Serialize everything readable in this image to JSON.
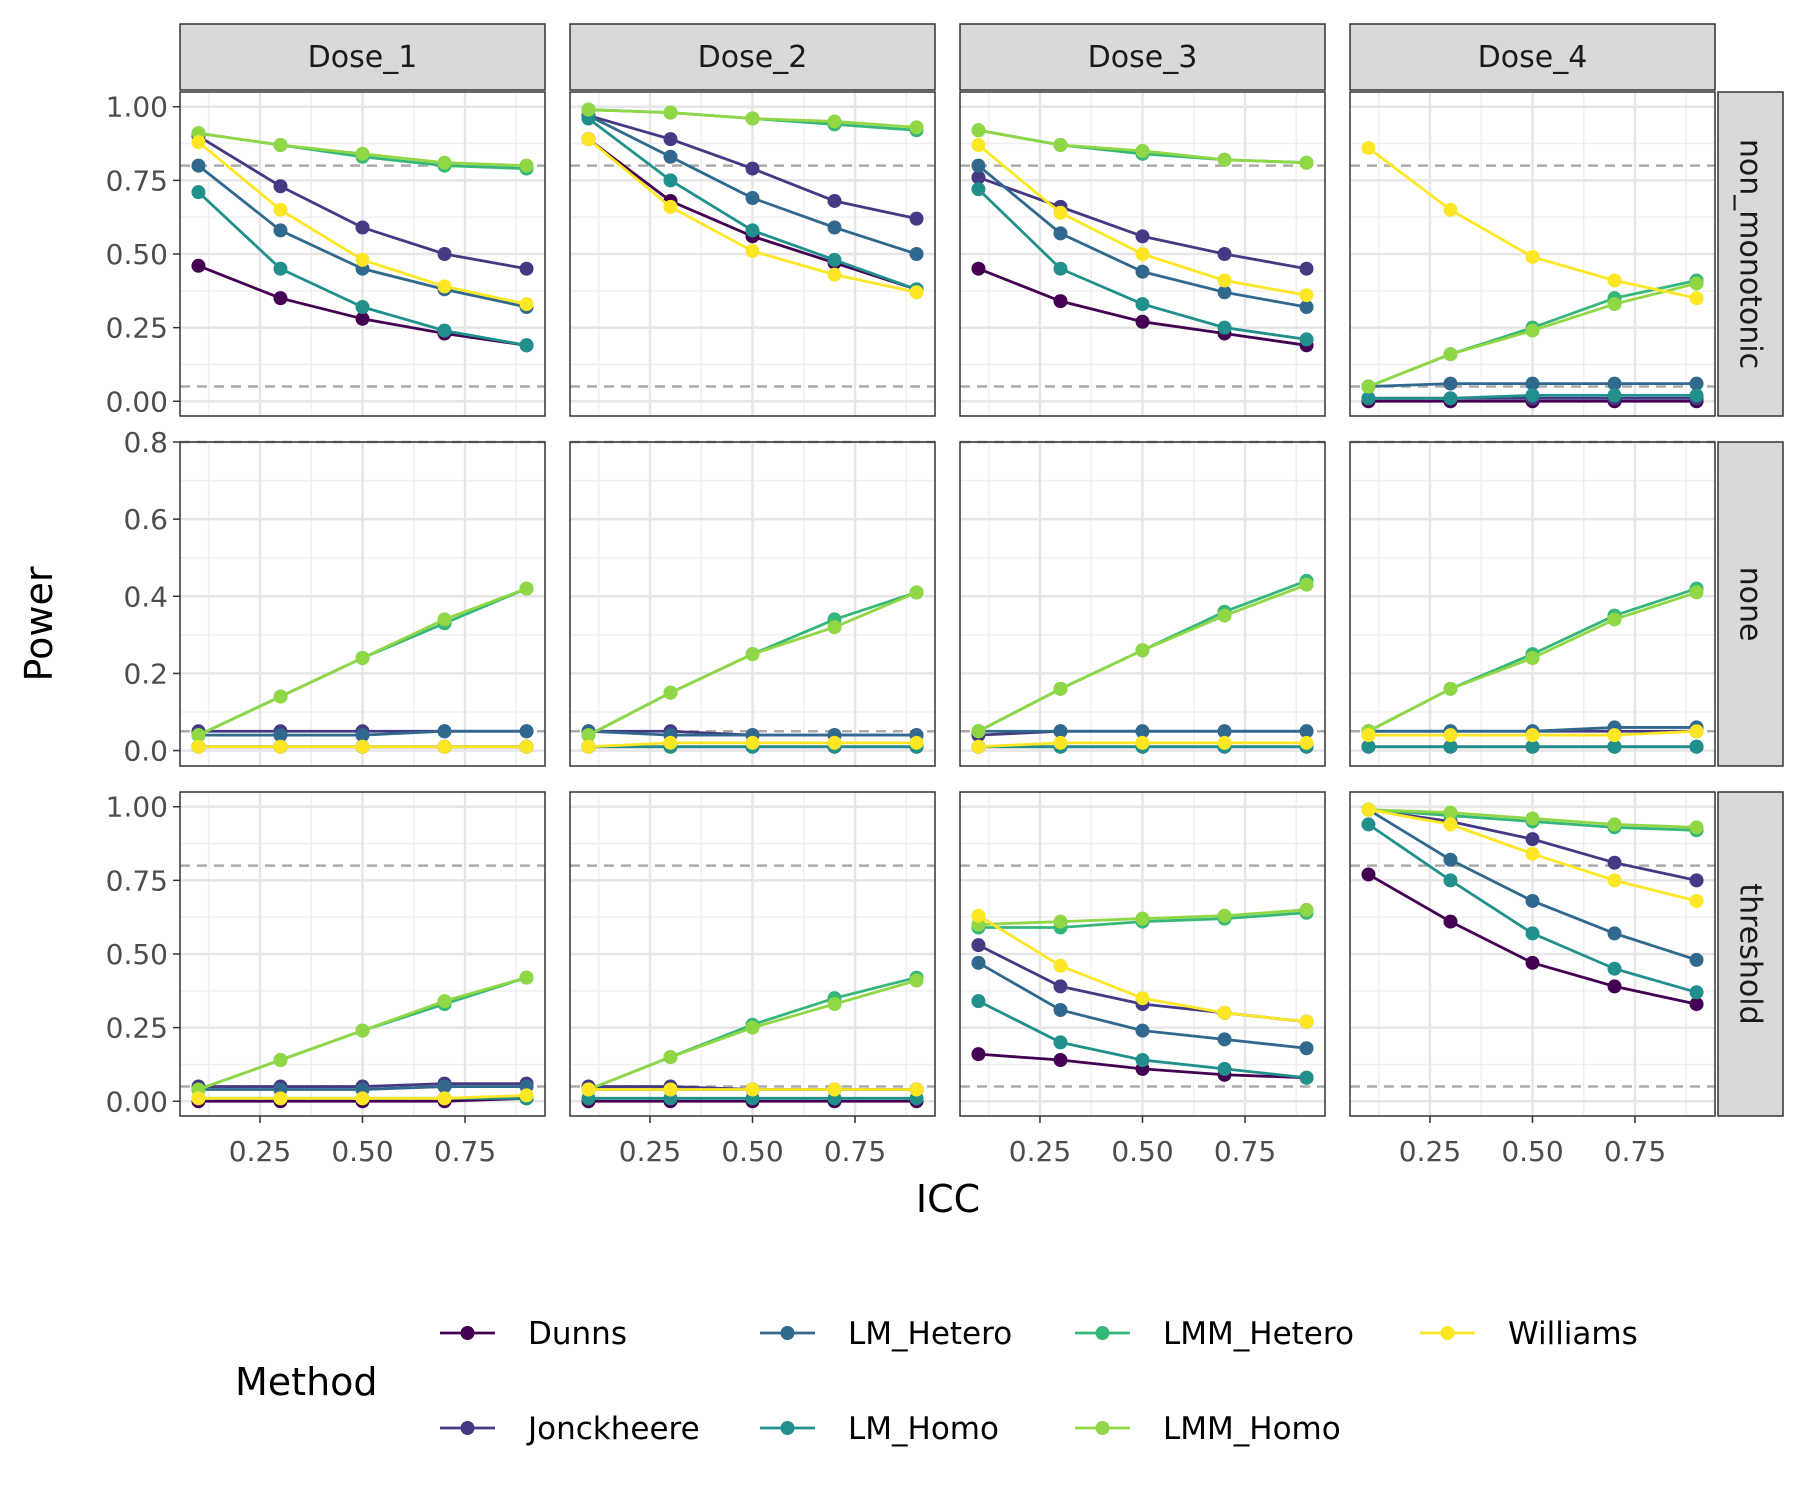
{
  "chart_data": {
    "type": "line",
    "xlabel": "ICC",
    "ylabel": "Power",
    "x": [
      0.1,
      0.3,
      0.5,
      0.7,
      0.9
    ],
    "x_ticks": [
      "0.25",
      "0.50",
      "0.75"
    ],
    "x_tick_values": [
      0.25,
      0.5,
      0.75
    ],
    "xlim": [
      0.055,
      0.945
    ],
    "columns": [
      "Dose_1",
      "Dose_2",
      "Dose_3",
      "Dose_4"
    ],
    "rows": [
      {
        "name": "non_monotonic",
        "ylim": [
          -0.05,
          1.05
        ],
        "y_ticks": [
          "0.00",
          "0.25",
          "0.50",
          "0.75",
          "1.00"
        ],
        "y_tick_values": [
          0,
          0.25,
          0.5,
          0.75,
          1.0
        ]
      },
      {
        "name": "none",
        "ylim": [
          -0.04,
          0.8
        ],
        "y_ticks": [
          "0.0",
          "0.2",
          "0.4",
          "0.6",
          "0.8"
        ],
        "y_tick_values": [
          0,
          0.2,
          0.4,
          0.6,
          0.8
        ]
      },
      {
        "name": "threshold",
        "ylim": [
          -0.05,
          1.05
        ],
        "y_ticks": [
          "0.00",
          "0.25",
          "0.50",
          "0.75",
          "1.00"
        ],
        "y_tick_values": [
          0,
          0.25,
          0.5,
          0.75,
          1.0
        ]
      }
    ],
    "reference_lines": [
      0.05,
      0.8
    ],
    "legend": {
      "title": "Method",
      "position": "bottom",
      "entries": [
        {
          "name": "Dunns",
          "color": "#440154"
        },
        {
          "name": "Jonckheere",
          "color": "#443A83"
        },
        {
          "name": "LM_Hetero",
          "color": "#31688E"
        },
        {
          "name": "LM_Homo",
          "color": "#21908C"
        },
        {
          "name": "LMM_Hetero",
          "color": "#35B779"
        },
        {
          "name": "LMM_Homo",
          "color": "#8FD744"
        },
        {
          "name": "Williams",
          "color": "#FDE725"
        }
      ]
    },
    "panels": [
      {
        "row": "non_monotonic",
        "col": "Dose_1",
        "series": {
          "Dunns": [
            0.46,
            0.35,
            0.28,
            0.23,
            0.19
          ],
          "Jonckheere": [
            0.9,
            0.73,
            0.59,
            0.5,
            0.45
          ],
          "LM_Hetero": [
            0.8,
            0.58,
            0.45,
            0.38,
            0.32
          ],
          "LM_Homo": [
            0.71,
            0.45,
            0.32,
            0.24,
            0.19
          ],
          "LMM_Hetero": [
            0.91,
            0.87,
            0.83,
            0.8,
            0.79
          ],
          "LMM_Homo": [
            0.91,
            0.87,
            0.84,
            0.81,
            0.8
          ],
          "Williams": [
            0.88,
            0.65,
            0.48,
            0.39,
            0.33
          ]
        }
      },
      {
        "row": "non_monotonic",
        "col": "Dose_2",
        "series": {
          "Dunns": [
            0.89,
            0.68,
            0.56,
            0.47,
            0.38
          ],
          "Jonckheere": [
            0.97,
            0.89,
            0.79,
            0.68,
            0.62
          ],
          "LM_Hetero": [
            0.97,
            0.83,
            0.69,
            0.59,
            0.5
          ],
          "LM_Homo": [
            0.96,
            0.75,
            0.58,
            0.48,
            0.38
          ],
          "LMM_Hetero": [
            0.99,
            0.98,
            0.96,
            0.94,
            0.92
          ],
          "LMM_Homo": [
            0.99,
            0.98,
            0.96,
            0.95,
            0.93
          ],
          "Williams": [
            0.89,
            0.66,
            0.51,
            0.43,
            0.37
          ]
        }
      },
      {
        "row": "non_monotonic",
        "col": "Dose_3",
        "series": {
          "Dunns": [
            0.45,
            0.34,
            0.27,
            0.23,
            0.19
          ],
          "Jonckheere": [
            0.76,
            0.66,
            0.56,
            0.5,
            0.45
          ],
          "LM_Hetero": [
            0.8,
            0.57,
            0.44,
            0.37,
            0.32
          ],
          "LM_Homo": [
            0.72,
            0.45,
            0.33,
            0.25,
            0.21
          ],
          "LMM_Hetero": [
            0.92,
            0.87,
            0.84,
            0.82,
            0.81
          ],
          "LMM_Homo": [
            0.92,
            0.87,
            0.85,
            0.82,
            0.81
          ],
          "Williams": [
            0.87,
            0.64,
            0.5,
            0.41,
            0.36
          ]
        }
      },
      {
        "row": "non_monotonic",
        "col": "Dose_4",
        "series": {
          "Dunns": [
            0.0,
            0.0,
            0.0,
            0.0,
            0.0
          ],
          "Jonckheere": [
            0.01,
            0.01,
            0.01,
            0.01,
            0.01
          ],
          "LM_Hetero": [
            0.05,
            0.06,
            0.06,
            0.06,
            0.06
          ],
          "LM_Homo": [
            0.01,
            0.01,
            0.02,
            0.02,
            0.02
          ],
          "LMM_Hetero": [
            0.05,
            0.16,
            0.25,
            0.35,
            0.41
          ],
          "LMM_Homo": [
            0.05,
            0.16,
            0.24,
            0.33,
            0.4
          ],
          "Williams": [
            0.86,
            0.65,
            0.49,
            0.41,
            0.35
          ]
        }
      },
      {
        "row": "none",
        "col": "Dose_1",
        "series": {
          "Dunns": [
            0.01,
            0.01,
            0.01,
            0.01,
            0.01
          ],
          "Jonckheere": [
            0.05,
            0.05,
            0.05,
            0.05,
            0.05
          ],
          "LM_Hetero": [
            0.04,
            0.04,
            0.04,
            0.05,
            0.05
          ],
          "LM_Homo": [
            0.01,
            0.01,
            0.01,
            0.01,
            0.01
          ],
          "LMM_Hetero": [
            0.04,
            0.14,
            0.24,
            0.33,
            0.42
          ],
          "LMM_Homo": [
            0.04,
            0.14,
            0.24,
            0.34,
            0.42
          ],
          "Williams": [
            0.01,
            0.01,
            0.01,
            0.01,
            0.01
          ]
        }
      },
      {
        "row": "none",
        "col": "Dose_2",
        "series": {
          "Dunns": [
            0.01,
            0.01,
            0.01,
            0.01,
            0.01
          ],
          "Jonckheere": [
            0.05,
            0.05,
            0.04,
            0.04,
            0.04
          ],
          "LM_Hetero": [
            0.05,
            0.04,
            0.04,
            0.04,
            0.04
          ],
          "LM_Homo": [
            0.01,
            0.01,
            0.01,
            0.01,
            0.01
          ],
          "LMM_Hetero": [
            0.04,
            0.15,
            0.25,
            0.34,
            0.41
          ],
          "LMM_Homo": [
            0.04,
            0.15,
            0.25,
            0.32,
            0.41
          ],
          "Williams": [
            0.01,
            0.02,
            0.02,
            0.02,
            0.02
          ]
        }
      },
      {
        "row": "none",
        "col": "Dose_3",
        "series": {
          "Dunns": [
            0.01,
            0.01,
            0.01,
            0.01,
            0.01
          ],
          "Jonckheere": [
            0.04,
            0.05,
            0.05,
            0.05,
            0.05
          ],
          "LM_Hetero": [
            0.05,
            0.05,
            0.05,
            0.05,
            0.05
          ],
          "LM_Homo": [
            0.01,
            0.01,
            0.01,
            0.01,
            0.01
          ],
          "LMM_Hetero": [
            0.05,
            0.16,
            0.26,
            0.36,
            0.44
          ],
          "LMM_Homo": [
            0.05,
            0.16,
            0.26,
            0.35,
            0.43
          ],
          "Williams": [
            0.01,
            0.02,
            0.02,
            0.02,
            0.02
          ]
        }
      },
      {
        "row": "none",
        "col": "Dose_4",
        "series": {
          "Dunns": [
            0.01,
            0.01,
            0.01,
            0.01,
            0.01
          ],
          "Jonckheere": [
            0.05,
            0.05,
            0.05,
            0.05,
            0.05
          ],
          "LM_Hetero": [
            0.05,
            0.05,
            0.05,
            0.06,
            0.06
          ],
          "LM_Homo": [
            0.01,
            0.01,
            0.01,
            0.01,
            0.01
          ],
          "LMM_Hetero": [
            0.05,
            0.16,
            0.25,
            0.35,
            0.42
          ],
          "LMM_Homo": [
            0.05,
            0.16,
            0.24,
            0.34,
            0.41
          ],
          "Williams": [
            0.04,
            0.04,
            0.04,
            0.04,
            0.05
          ]
        }
      },
      {
        "row": "threshold",
        "col": "Dose_1",
        "series": {
          "Dunns": [
            0.0,
            0.0,
            0.0,
            0.0,
            0.01
          ],
          "Jonckheere": [
            0.05,
            0.05,
            0.05,
            0.06,
            0.06
          ],
          "LM_Hetero": [
            0.04,
            0.04,
            0.04,
            0.05,
            0.05
          ],
          "LM_Homo": [
            0.01,
            0.01,
            0.01,
            0.01,
            0.01
          ],
          "LMM_Hetero": [
            0.04,
            0.14,
            0.24,
            0.33,
            0.42
          ],
          "LMM_Homo": [
            0.04,
            0.14,
            0.24,
            0.34,
            0.42
          ],
          "Williams": [
            0.01,
            0.01,
            0.01,
            0.01,
            0.02
          ]
        }
      },
      {
        "row": "threshold",
        "col": "Dose_2",
        "series": {
          "Dunns": [
            0.0,
            0.0,
            0.0,
            0.0,
            0.0
          ],
          "Jonckheere": [
            0.05,
            0.05,
            0.04,
            0.04,
            0.04
          ],
          "LM_Hetero": [
            0.04,
            0.04,
            0.04,
            0.04,
            0.04
          ],
          "LM_Homo": [
            0.01,
            0.01,
            0.01,
            0.01,
            0.01
          ],
          "LMM_Hetero": [
            0.04,
            0.15,
            0.26,
            0.35,
            0.42
          ],
          "LMM_Homo": [
            0.04,
            0.15,
            0.25,
            0.33,
            0.41
          ],
          "Williams": [
            0.04,
            0.04,
            0.04,
            0.04,
            0.04
          ]
        }
      },
      {
        "row": "threshold",
        "col": "Dose_3",
        "series": {
          "Dunns": [
            0.16,
            0.14,
            0.11,
            0.09,
            0.08
          ],
          "Jonckheere": [
            0.53,
            0.39,
            0.33,
            0.3,
            0.27
          ],
          "LM_Hetero": [
            0.47,
            0.31,
            0.24,
            0.21,
            0.18
          ],
          "LM_Homo": [
            0.34,
            0.2,
            0.14,
            0.11,
            0.08
          ],
          "LMM_Hetero": [
            0.59,
            0.59,
            0.61,
            0.62,
            0.64
          ],
          "LMM_Homo": [
            0.6,
            0.61,
            0.62,
            0.63,
            0.65
          ],
          "Williams": [
            0.63,
            0.46,
            0.35,
            0.3,
            0.27
          ]
        }
      },
      {
        "row": "threshold",
        "col": "Dose_4",
        "series": {
          "Dunns": [
            0.77,
            0.61,
            0.47,
            0.39,
            0.33
          ],
          "Jonckheere": [
            0.99,
            0.95,
            0.89,
            0.81,
            0.75
          ],
          "LM_Hetero": [
            0.99,
            0.82,
            0.68,
            0.57,
            0.48
          ],
          "LM_Homo": [
            0.94,
            0.75,
            0.57,
            0.45,
            0.37
          ],
          "LMM_Hetero": [
            0.99,
            0.97,
            0.95,
            0.93,
            0.92
          ],
          "LMM_Homo": [
            0.99,
            0.98,
            0.96,
            0.94,
            0.93
          ],
          "Williams": [
            0.99,
            0.94,
            0.84,
            0.75,
            0.68
          ]
        }
      }
    ]
  }
}
